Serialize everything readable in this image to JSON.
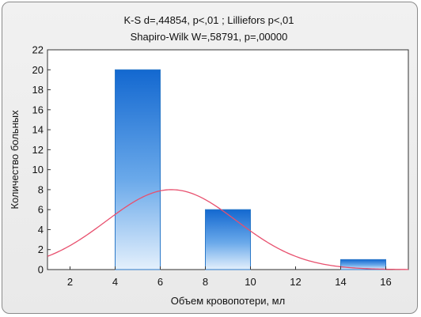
{
  "chart_data": {
    "type": "bar",
    "title": "K-S d=,44854, p<,01 ; Lilliefors p<,01",
    "subtitle": "Shapiro-Wilk W=,58791, p=,00000",
    "xlabel": "Объем кровопотери, мл",
    "ylabel": "Количество больных",
    "xlim": [
      1,
      17
    ],
    "ylim": [
      0,
      22
    ],
    "xticks": [
      "2",
      "4",
      "6",
      "8",
      "10",
      "12",
      "14",
      "16"
    ],
    "yticks": [
      "0",
      "2",
      "4",
      "6",
      "8",
      "10",
      "12",
      "14",
      "16",
      "18",
      "20",
      "22"
    ],
    "bins": [
      {
        "start": 4,
        "end": 6,
        "value": 20
      },
      {
        "start": 8,
        "end": 10,
        "value": 6
      },
      {
        "start": 14,
        "end": 16,
        "value": 1
      }
    ],
    "normal_curve": {
      "mean": 6.5,
      "sd": 2.9,
      "peak": 8,
      "color": "#e8506e"
    },
    "bar_color": "#2a78c8",
    "grid": false,
    "legend": "none"
  }
}
